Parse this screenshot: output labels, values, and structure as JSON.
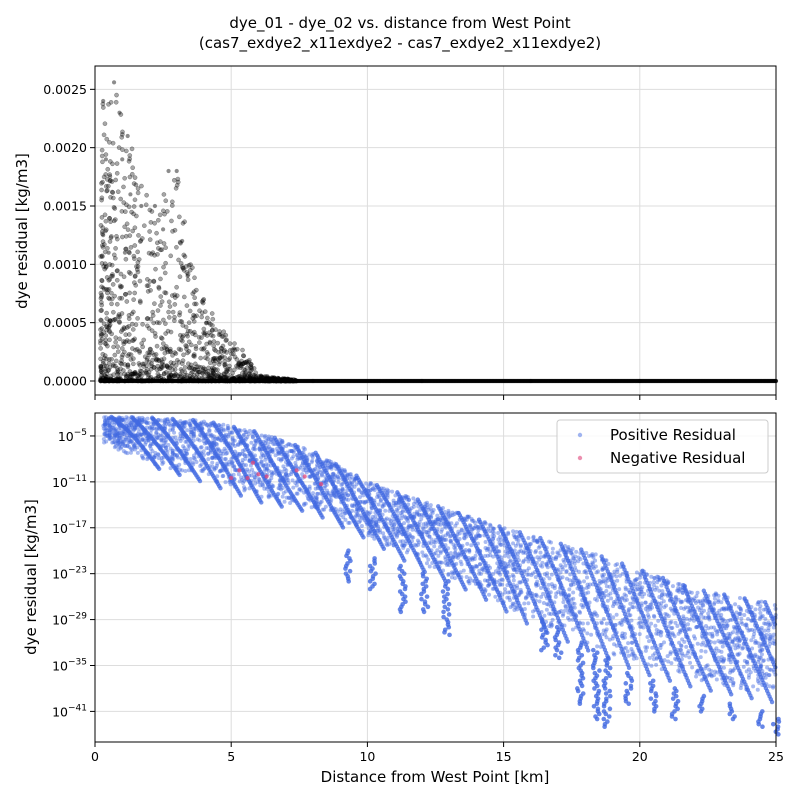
{
  "figure": {
    "title_line1": "dye_01 - dye_02 vs. distance from West Point",
    "title_line2": "(cas7_exdye2_x11exdye2 - cas7_exdye2_x11exdye2)"
  },
  "colors": {
    "black_points": "#000000",
    "positive": "#4169e1",
    "negative": "#e0457a",
    "grid": "#dddddd"
  },
  "chart_data": [
    {
      "type": "scatter",
      "title": "",
      "xlabel": "",
      "ylabel": "dye residual [kg/m3]",
      "xlim": [
        0,
        25
      ],
      "ylim": [
        -0.00012,
        0.0027
      ],
      "yscale": "linear",
      "grid": true,
      "xticks": [
        0,
        5,
        10,
        15,
        20,
        25
      ],
      "yticks": [
        0.0,
        0.0005,
        0.001,
        0.0015,
        0.002,
        0.0025
      ],
      "ytick_labels": [
        "0.0000",
        "0.0005",
        "0.0010",
        "0.0015",
        "0.0020",
        "0.0025"
      ],
      "series": [
        {
          "color": "black",
          "envelope_max": [
            [
              0.2,
              0.0024
            ],
            [
              0.7,
              0.00256
            ],
            [
              1.0,
              0.0023
            ],
            [
              1.5,
              0.0019
            ],
            [
              2.0,
              0.0016
            ],
            [
              2.5,
              0.0016
            ],
            [
              3.0,
              0.0018
            ],
            [
              3.5,
              0.0011
            ],
            [
              4.0,
              0.0007
            ],
            [
              4.5,
              0.0005
            ],
            [
              5.0,
              0.00035
            ],
            [
              5.5,
              0.00025
            ],
            [
              6.0,
              5e-05
            ],
            [
              7.0,
              2e-05
            ],
            [
              8.0,
              0.0
            ],
            [
              25.0,
              0.0
            ]
          ],
          "points": [
            [
              0.3,
              0.0024
            ],
            [
              0.7,
              0.00256
            ],
            [
              0.9,
              0.0023
            ],
            [
              1.2,
              0.0021
            ],
            [
              0.4,
              0.0019
            ],
            [
              1.0,
              0.0019
            ],
            [
              0.3,
              0.00125
            ],
            [
              0.5,
              0.0011
            ],
            [
              1.3,
              0.0016
            ],
            [
              1.7,
              0.0015
            ],
            [
              2.2,
              0.0015
            ],
            [
              2.7,
              0.0018
            ],
            [
              3.0,
              0.0018
            ],
            [
              3.2,
              0.0012
            ],
            [
              3.4,
              0.0009
            ],
            [
              0.3,
              0.0008
            ],
            [
              1.1,
              0.0011
            ],
            [
              2.5,
              0.0013
            ],
            [
              4.1,
              0.0005
            ],
            [
              4.6,
              0.0004
            ],
            [
              5.1,
              0.00028
            ],
            [
              5.6,
              0.00015
            ],
            [
              6.1,
              4e-05
            ],
            [
              8.0,
              0.0
            ],
            [
              12.0,
              0.0
            ],
            [
              16.0,
              0.0
            ],
            [
              20.0,
              0.0
            ],
            [
              25.0,
              0.0
            ]
          ]
        }
      ]
    },
    {
      "type": "scatter",
      "title": "",
      "xlabel": "Distance from West Point [km]",
      "ylabel": "dye residual [kg/m3]",
      "xlim": [
        0,
        25
      ],
      "ylim": [
        -45,
        -2
      ],
      "yscale": "log",
      "grid": true,
      "xticks": [
        0,
        5,
        10,
        15,
        20,
        25
      ],
      "yticks_exp": [
        -5,
        -11,
        -17,
        -23,
        -29,
        -35,
        -41
      ],
      "legend_position": "upper right",
      "series": [
        {
          "name": "Positive Residual",
          "color": "royalblue",
          "log10_upper": [
            [
              0.3,
              -2.5
            ],
            [
              2,
              -2.6
            ],
            [
              4,
              -3
            ],
            [
              6,
              -4.5
            ],
            [
              8,
              -7
            ],
            [
              10,
              -11
            ],
            [
              12,
              -13.5
            ],
            [
              15,
              -17
            ],
            [
              18,
              -20
            ],
            [
              20,
              -22.5
            ],
            [
              22,
              -25
            ],
            [
              25,
              -27
            ]
          ],
          "log10_lower": [
            [
              0.3,
              -6
            ],
            [
              2,
              -8.5
            ],
            [
              4,
              -10.5
            ],
            [
              6,
              -13
            ],
            [
              8,
              -14.5
            ],
            [
              10,
              -18
            ],
            [
              12,
              -22
            ],
            [
              14,
              -25
            ],
            [
              16,
              -29
            ],
            [
              18,
              -32
            ],
            [
              20,
              -35
            ],
            [
              22,
              -37
            ],
            [
              25,
              -39
            ]
          ],
          "spikes": [
            [
              9.3,
              -20,
              -24
            ],
            [
              10.2,
              -21,
              -25
            ],
            [
              11.3,
              -22,
              -28
            ],
            [
              12.1,
              -23,
              -28
            ],
            [
              12.9,
              -24,
              -31
            ],
            [
              16.5,
              -29,
              -33
            ],
            [
              17.0,
              -30,
              -34
            ],
            [
              17.8,
              -32,
              -40
            ],
            [
              18.4,
              -33,
              -42
            ],
            [
              18.8,
              -34,
              -43
            ],
            [
              19.6,
              -36,
              -40
            ],
            [
              20.5,
              -37,
              -41
            ],
            [
              21.3,
              -38,
              -42
            ],
            [
              22.3,
              -39,
              -41
            ],
            [
              23.4,
              -40,
              -42
            ],
            [
              24.4,
              -41,
              -43
            ],
            [
              25.0,
              -42,
              -44
            ]
          ]
        },
        {
          "name": "Negative Residual",
          "color": "crimson",
          "points": [
            [
              5.0,
              -10.5
            ],
            [
              5.3,
              -9.5
            ],
            [
              5.6,
              -10.5
            ],
            [
              5.8,
              -8.5
            ],
            [
              6.0,
              -10.0
            ],
            [
              6.3,
              -10.3
            ],
            [
              7.4,
              -9.5
            ],
            [
              7.7,
              -10.3
            ],
            [
              8.3,
              -11.3
            ]
          ]
        }
      ]
    }
  ]
}
